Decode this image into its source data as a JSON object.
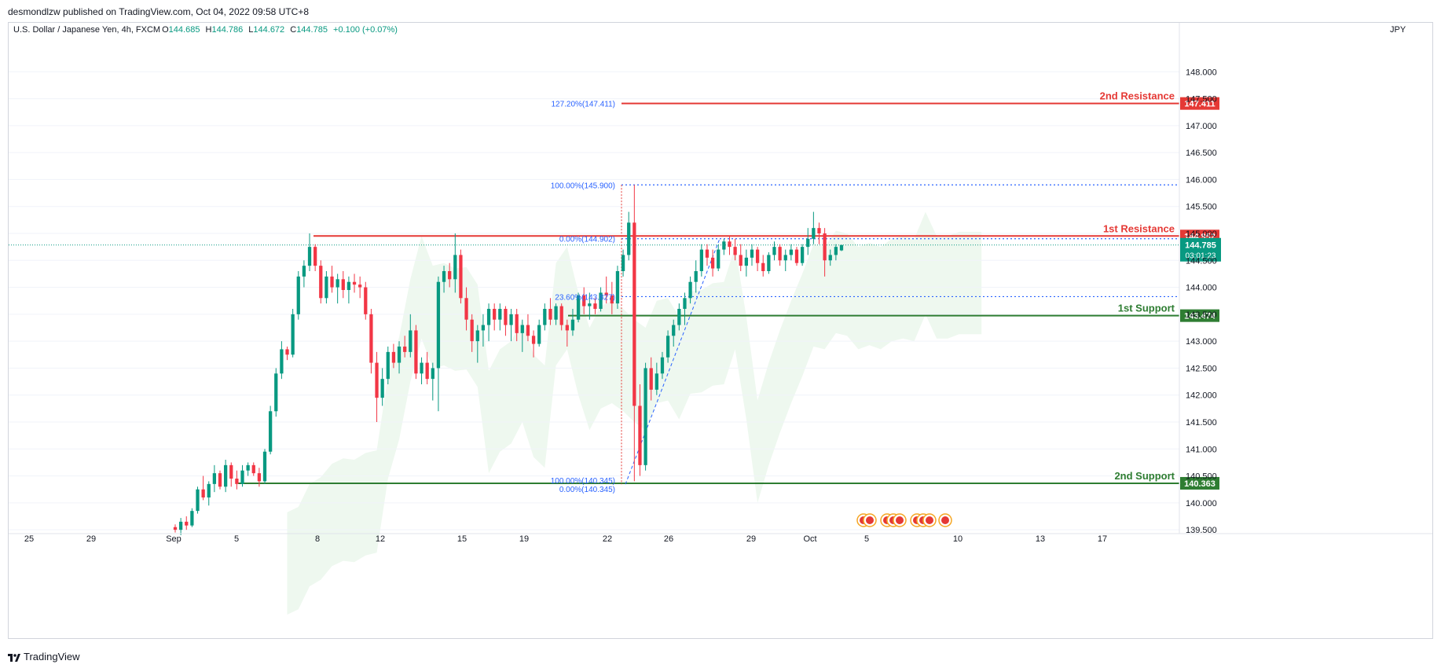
{
  "header": {
    "published": "desmondlzw published on TradingView.com, Oct 04, 2022 09:58 UTC+8"
  },
  "footer": {
    "brand": "TradingView"
  },
  "colors": {
    "up": "#26a69a",
    "up_body": "#089981",
    "down": "#f23645",
    "resistance": "#e53935",
    "support": "#2e7d32",
    "fib": "#2962ff",
    "cloud": "#e8f5e9"
  },
  "chart_data": {
    "type": "candlestick",
    "symbol_line": {
      "name": "U.S. Dollar / Japanese Yen, 4h, FXCM",
      "o_label": "O",
      "o": "144.685",
      "h_label": "H",
      "h": "144.786",
      "l_label": "L",
      "l": "144.672",
      "c_label": "C",
      "c": "144.785",
      "chg": "+0.100 (+0.07%)"
    },
    "currency": "JPY",
    "y_ticks": [
      "148.000",
      "147.500",
      "147.000",
      "146.500",
      "146.000",
      "145.500",
      "145.000",
      "144.500",
      "144.000",
      "143.500",
      "143.000",
      "142.500",
      "142.000",
      "141.500",
      "141.000",
      "140.500",
      "140.000",
      "139.500"
    ],
    "ylim": [
      139.4,
      148.5
    ],
    "x_ticks": [
      "25",
      "29",
      "Sep",
      "5",
      "8",
      "12",
      "15",
      "19",
      "22",
      "26",
      "29",
      "Oct",
      "5",
      "10",
      "13",
      "17"
    ],
    "levels": [
      {
        "name": "2nd Resistance",
        "value": "147.411",
        "color": "resistance"
      },
      {
        "name": "1st Resistance",
        "value": "144.952",
        "color": "resistance"
      },
      {
        "name": "1st Support",
        "value": "143.474",
        "color": "support"
      },
      {
        "name": "2nd Support",
        "value": "140.363",
        "color": "support"
      }
    ],
    "fib_labels": [
      {
        "text": "127.20%(147.411)",
        "value": 147.411
      },
      {
        "text": "100.00%(145.900)",
        "value": 145.9
      },
      {
        "text": "0.00%(144.902)",
        "value": 144.902
      },
      {
        "text": "23.60%(143.827)",
        "value": 143.827
      },
      {
        "text": "100.00%(140.345)",
        "value": 140.345
      },
      {
        "text": "0.00%(140.345)",
        "value": 140.345
      }
    ],
    "last_price": {
      "value": "144.785",
      "countdown": "03:01:23"
    },
    "candles": [
      [
        139.55,
        139.6,
        139.45,
        139.5
      ],
      [
        139.5,
        139.72,
        139.4,
        139.65
      ],
      [
        139.65,
        139.75,
        139.5,
        139.58
      ],
      [
        139.58,
        139.9,
        139.55,
        139.85
      ],
      [
        139.85,
        140.3,
        139.8,
        140.25
      ],
      [
        140.25,
        140.5,
        140.05,
        140.1
      ],
      [
        140.1,
        140.4,
        139.95,
        140.35
      ],
      [
        140.35,
        140.7,
        140.2,
        140.55
      ],
      [
        140.55,
        140.6,
        140.25,
        140.3
      ],
      [
        140.3,
        140.8,
        140.2,
        140.7
      ],
      [
        140.7,
        140.75,
        140.3,
        140.45
      ],
      [
        140.45,
        140.6,
        140.25,
        140.35
      ],
      [
        140.35,
        140.7,
        140.3,
        140.6
      ],
      [
        140.6,
        140.75,
        140.5,
        140.7
      ],
      [
        140.7,
        140.75,
        140.5,
        140.55
      ],
      [
        140.55,
        140.65,
        140.3,
        140.4
      ],
      [
        140.4,
        141.0,
        140.35,
        140.95
      ],
      [
        140.95,
        141.8,
        140.9,
        141.7
      ],
      [
        141.7,
        142.5,
        141.6,
        142.4
      ],
      [
        142.4,
        143.0,
        142.3,
        142.85
      ],
      [
        142.85,
        142.9,
        142.65,
        142.75
      ],
      [
        142.75,
        143.6,
        142.7,
        143.5
      ],
      [
        143.5,
        144.3,
        143.4,
        144.2
      ],
      [
        144.2,
        144.5,
        144.0,
        144.4
      ],
      [
        144.4,
        145.0,
        144.3,
        144.75
      ],
      [
        144.75,
        144.8,
        144.3,
        144.4
      ],
      [
        144.4,
        144.5,
        143.7,
        143.8
      ],
      [
        143.8,
        144.3,
        143.7,
        144.2
      ],
      [
        144.2,
        144.4,
        143.9,
        144.0
      ],
      [
        144.0,
        144.25,
        143.7,
        144.15
      ],
      [
        144.15,
        144.3,
        143.8,
        143.95
      ],
      [
        143.95,
        144.2,
        143.7,
        144.1
      ],
      [
        144.1,
        144.25,
        143.9,
        144.05
      ],
      [
        144.05,
        144.2,
        143.8,
        144.0
      ],
      [
        144.0,
        144.1,
        143.4,
        143.5
      ],
      [
        143.5,
        143.6,
        142.4,
        142.6
      ],
      [
        142.6,
        142.8,
        141.5,
        141.95
      ],
      [
        141.95,
        142.5,
        141.8,
        142.3
      ],
      [
        142.3,
        142.9,
        142.2,
        142.8
      ],
      [
        142.8,
        142.95,
        142.5,
        142.6
      ],
      [
        142.6,
        143.0,
        142.4,
        142.9
      ],
      [
        142.9,
        143.1,
        142.7,
        142.8
      ],
      [
        142.8,
        143.5,
        142.7,
        143.2
      ],
      [
        143.2,
        143.3,
        142.3,
        142.4
      ],
      [
        142.4,
        142.7,
        142.2,
        142.6
      ],
      [
        142.6,
        142.8,
        142.2,
        142.3
      ],
      [
        142.3,
        142.6,
        141.9,
        142.5
      ],
      [
        142.5,
        144.2,
        141.7,
        144.1
      ],
      [
        144.1,
        144.4,
        143.9,
        144.3
      ],
      [
        144.3,
        144.45,
        144.0,
        144.15
      ],
      [
        144.15,
        145.0,
        143.9,
        144.6
      ],
      [
        144.6,
        144.7,
        143.7,
        143.8
      ],
      [
        143.8,
        144.0,
        143.2,
        143.4
      ],
      [
        143.4,
        143.5,
        142.8,
        143.0
      ],
      [
        143.0,
        143.3,
        142.6,
        143.2
      ],
      [
        143.2,
        143.5,
        142.9,
        143.3
      ],
      [
        143.3,
        143.7,
        143.0,
        143.6
      ],
      [
        143.6,
        143.7,
        143.2,
        143.4
      ],
      [
        143.4,
        143.7,
        143.2,
        143.6
      ],
      [
        143.6,
        143.65,
        143.1,
        143.3
      ],
      [
        143.3,
        143.6,
        143.0,
        143.5
      ],
      [
        143.5,
        143.6,
        143.0,
        143.15
      ],
      [
        143.15,
        143.4,
        142.8,
        143.3
      ],
      [
        143.3,
        143.5,
        143.0,
        143.1
      ],
      [
        143.1,
        143.2,
        142.7,
        142.95
      ],
      [
        142.95,
        143.4,
        142.9,
        143.3
      ],
      [
        143.3,
        143.7,
        143.2,
        143.6
      ],
      [
        143.6,
        143.8,
        143.3,
        143.4
      ],
      [
        143.4,
        143.7,
        143.3,
        143.65
      ],
      [
        143.65,
        143.7,
        143.2,
        143.3
      ],
      [
        143.3,
        143.4,
        142.9,
        143.2
      ],
      [
        143.2,
        143.6,
        143.1,
        143.4
      ],
      [
        143.4,
        143.9,
        143.35,
        143.85
      ],
      [
        143.85,
        144.0,
        143.5,
        143.65
      ],
      [
        143.65,
        143.9,
        143.4,
        143.7
      ],
      [
        143.7,
        143.8,
        143.5,
        143.6
      ],
      [
        143.6,
        144.0,
        143.55,
        143.9
      ],
      [
        143.9,
        144.2,
        143.7,
        143.85
      ],
      [
        143.85,
        144.1,
        143.5,
        143.7
      ],
      [
        143.7,
        144.4,
        143.6,
        144.3
      ],
      [
        144.3,
        144.7,
        144.2,
        144.6
      ],
      [
        144.6,
        145.4,
        144.5,
        145.2
      ],
      [
        145.2,
        145.9,
        140.4,
        141.8
      ],
      [
        141.8,
        142.2,
        140.5,
        140.7
      ],
      [
        140.7,
        142.6,
        140.6,
        142.5
      ],
      [
        142.5,
        142.7,
        141.9,
        142.1
      ],
      [
        142.1,
        142.6,
        142.0,
        142.4
      ],
      [
        142.4,
        142.8,
        142.3,
        142.7
      ],
      [
        142.7,
        143.2,
        142.6,
        143.1
      ],
      [
        143.1,
        143.4,
        142.9,
        143.3
      ],
      [
        143.3,
        143.7,
        143.2,
        143.6
      ],
      [
        143.6,
        143.9,
        143.3,
        143.8
      ],
      [
        143.8,
        144.2,
        143.7,
        144.1
      ],
      [
        144.1,
        144.5,
        143.9,
        144.3
      ],
      [
        144.3,
        144.8,
        144.2,
        144.7
      ],
      [
        144.7,
        144.8,
        144.4,
        144.55
      ],
      [
        144.55,
        144.7,
        144.2,
        144.35
      ],
      [
        144.35,
        144.8,
        144.3,
        144.7
      ],
      [
        144.7,
        144.9,
        144.6,
        144.85
      ],
      [
        144.85,
        144.95,
        144.6,
        144.75
      ],
      [
        144.75,
        144.9,
        144.5,
        144.6
      ],
      [
        144.6,
        144.8,
        144.3,
        144.4
      ],
      [
        144.4,
        144.7,
        144.2,
        144.55
      ],
      [
        144.55,
        144.8,
        144.4,
        144.7
      ],
      [
        144.7,
        144.75,
        144.3,
        144.45
      ],
      [
        144.45,
        144.6,
        144.2,
        144.3
      ],
      [
        144.3,
        144.65,
        144.25,
        144.6
      ],
      [
        144.6,
        144.85,
        144.5,
        144.75
      ],
      [
        144.75,
        144.8,
        144.4,
        144.5
      ],
      [
        144.5,
        144.7,
        144.3,
        144.6
      ],
      [
        144.6,
        144.8,
        144.5,
        144.7
      ],
      [
        144.7,
        144.75,
        144.4,
        144.45
      ],
      [
        144.45,
        144.8,
        144.4,
        144.75
      ],
      [
        144.75,
        145.1,
        144.6,
        144.9
      ],
      [
        144.9,
        145.4,
        144.8,
        145.1
      ],
      [
        145.1,
        145.2,
        144.8,
        145.0
      ],
      [
        145.0,
        145.1,
        144.2,
        144.5
      ],
      [
        144.5,
        144.7,
        144.4,
        144.6
      ],
      [
        144.6,
        144.8,
        144.5,
        144.75
      ],
      [
        144.685,
        144.786,
        144.672,
        144.785
      ]
    ]
  }
}
